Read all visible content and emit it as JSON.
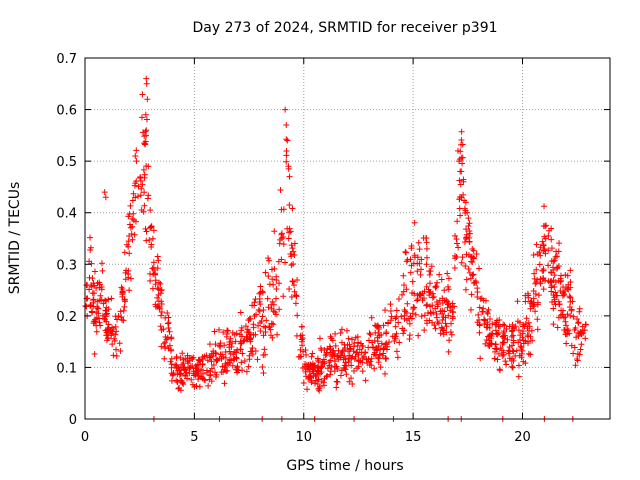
{
  "chart_data": {
    "type": "scatter",
    "title": "Day 273 of 2024, SRMTID for receiver p391",
    "xlabel": "GPS time / hours",
    "ylabel": "SRMTID / TECUs",
    "xlim": [
      0,
      24
    ],
    "ylim": [
      0,
      0.7
    ],
    "x_ticks": [
      0,
      5,
      10,
      15,
      20
    ],
    "x_tick_labels": [
      "0",
      "5",
      "10",
      "15",
      "20"
    ],
    "y_ticks": [
      0,
      0.1,
      0.2,
      0.3,
      0.4,
      0.5,
      0.6,
      0.7
    ],
    "y_tick_labels": [
      "0",
      "0.1",
      "0.2",
      "0.3",
      "0.4",
      "0.5",
      "0.6",
      "0.7"
    ],
    "grid": true,
    "marker": "+",
    "series": [
      {
        "name": "SRMTID",
        "color": "#ff0000",
        "envelope": {
          "x": [
            0,
            0.2,
            0.5,
            0.8,
            1.0,
            1.3,
            1.6,
            2.0,
            2.3,
            2.5,
            2.7,
            2.9,
            3.0,
            3.2,
            3.5,
            3.8,
            4.0,
            4.5,
            5.0,
            5.5,
            6.0,
            6.5,
            7.0,
            7.5,
            8.0,
            8.5,
            8.8,
            9.0,
            9.2,
            9.4,
            9.6,
            9.8,
            10.0,
            10.5,
            11.0,
            11.5,
            12.0,
            12.5,
            13.0,
            13.5,
            14.0,
            14.5,
            15.0,
            15.5,
            16.0,
            16.5,
            16.8,
            17.0,
            17.2,
            17.5,
            18.0,
            18.5,
            19.0,
            19.5,
            20.0,
            20.5,
            20.8,
            21.0,
            21.3,
            21.5,
            21.8,
            22.0,
            22.3,
            22.6,
            22.9
          ],
          "y": [
            0.22,
            0.28,
            0.2,
            0.24,
            0.18,
            0.17,
            0.18,
            0.33,
            0.43,
            0.48,
            0.5,
            0.42,
            0.33,
            0.28,
            0.2,
            0.16,
            0.1,
            0.09,
            0.09,
            0.1,
            0.12,
            0.13,
            0.13,
            0.16,
            0.2,
            0.22,
            0.25,
            0.38,
            0.45,
            0.35,
            0.28,
            0.2,
            0.1,
            0.09,
            0.11,
            0.12,
            0.12,
            0.13,
            0.13,
            0.15,
            0.17,
            0.2,
            0.27,
            0.28,
            0.23,
            0.21,
            0.22,
            0.35,
            0.45,
            0.35,
            0.22,
            0.17,
            0.15,
            0.14,
            0.16,
            0.22,
            0.28,
            0.33,
            0.3,
            0.26,
            0.24,
            0.22,
            0.2,
            0.16,
            0.15
          ]
        },
        "spread": [
          0.03,
          0.06,
          0.04,
          0.05,
          0.03,
          0.03,
          0.04,
          0.06,
          0.07,
          0.08,
          0.1,
          0.08,
          0.06,
          0.05,
          0.04,
          0.03,
          0.02,
          0.02,
          0.02,
          0.02,
          0.03,
          0.03,
          0.03,
          0.04,
          0.05,
          0.06,
          0.07,
          0.09,
          0.09,
          0.07,
          0.06,
          0.05,
          0.02,
          0.02,
          0.03,
          0.03,
          0.03,
          0.03,
          0.03,
          0.04,
          0.04,
          0.05,
          0.06,
          0.06,
          0.05,
          0.04,
          0.05,
          0.07,
          0.09,
          0.07,
          0.05,
          0.04,
          0.03,
          0.03,
          0.04,
          0.05,
          0.06,
          0.06,
          0.06,
          0.05,
          0.05,
          0.05,
          0.05,
          0.04,
          0.04
        ],
        "peaks": [
          {
            "x": 2.8,
            "y": 0.66
          },
          {
            "x": 2.82,
            "y": 0.65
          },
          {
            "x": 2.85,
            "y": 0.62
          },
          {
            "x": 2.78,
            "y": 0.59
          },
          {
            "x": 2.8,
            "y": 0.56
          },
          {
            "x": 2.3,
            "y": 0.51
          },
          {
            "x": 2.35,
            "y": 0.5
          },
          {
            "x": 9.15,
            "y": 0.6
          },
          {
            "x": 9.2,
            "y": 0.57
          },
          {
            "x": 9.25,
            "y": 0.54
          },
          {
            "x": 9.3,
            "y": 0.49
          },
          {
            "x": 9.35,
            "y": 0.47
          },
          {
            "x": 17.05,
            "y": 0.52
          },
          {
            "x": 17.1,
            "y": 0.5
          },
          {
            "x": 17.15,
            "y": 0.48
          },
          {
            "x": 17.3,
            "y": 0.46
          },
          {
            "x": 0.9,
            "y": 0.44
          },
          {
            "x": 0.95,
            "y": 0.43
          }
        ],
        "zero_markers_x": [
          3.15,
          6.15,
          8.1,
          9.0,
          10.5,
          12.3,
          14.1,
          16.6,
          17.2,
          19.1,
          21.0,
          22.3
        ]
      }
    ]
  }
}
